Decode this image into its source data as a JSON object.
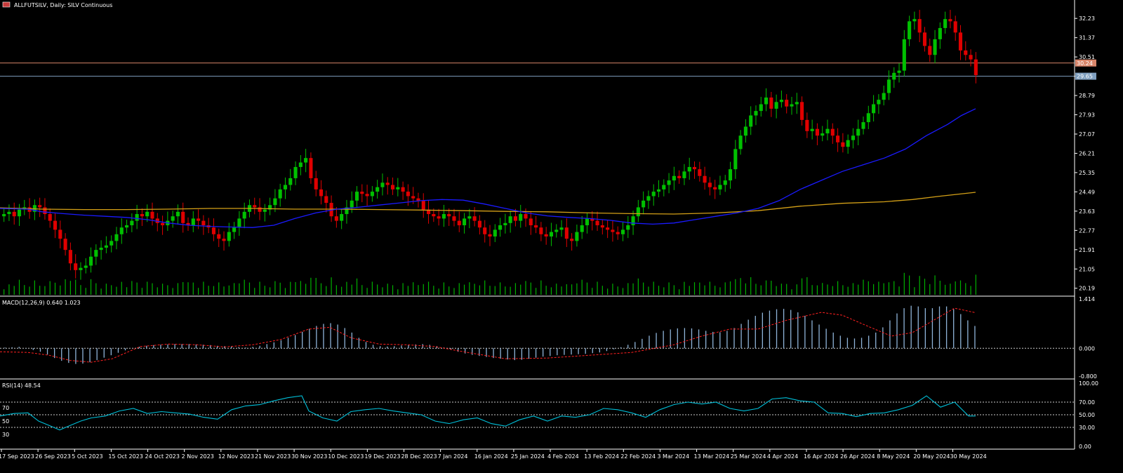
{
  "header": {
    "symbol_title": "ALLFUTSILV, Daily:  SILV Continuous",
    "flag_icon": "flag-icon"
  },
  "panels": {
    "macd_label": "MACD(12,26,9) 0.640 1.023",
    "rsi_label": "RSI(14) 48.54",
    "rsi_levels": [
      "70",
      "50",
      "30"
    ]
  },
  "colors": {
    "background": "#000000",
    "bull": "#00c000",
    "bear": "#e00000",
    "sma50": "#1a1aff",
    "sma200": "#d4a017",
    "volume": "#00b000",
    "macd_hist": "#8fb4d9",
    "macd_signal": "#ff2020",
    "rsi": "#00bfd8",
    "hline_upper": "#d9866b",
    "hline_lower": "#7f9fbf",
    "grid": "#888888"
  },
  "chart_data": [
    {
      "type": "candlestick",
      "title": "ALLFUTSILV, Daily:  SILV Continuous",
      "y_ticks": [
        "32.23",
        "31.37",
        "30.51",
        "29.65",
        "28.79",
        "27.93",
        "27.07",
        "26.21",
        "25.35",
        "24.49",
        "23.63",
        "22.77",
        "21.91",
        "21.05",
        "20.19"
      ],
      "ylim": [
        19.9,
        32.8
      ],
      "x_labels": [
        "17 Sep 2023",
        "26 Sep 2023",
        "5 Oct 2023",
        "15 Oct 2023",
        "24 Oct 2023",
        "2 Nov 2023",
        "12 Nov 2023",
        "21 Nov 2023",
        "30 Nov 2023",
        "10 Dec 2023",
        "19 Dec 2023",
        "28 Dec 2023",
        "7 Jan 2024",
        "16 Jan 2024",
        "25 Jan 2024",
        "4 Feb 2024",
        "13 Feb 2024",
        "22 Feb 2024",
        "3 Mar 2024",
        "13 Mar 2024",
        "25 Mar 2024",
        "4 Apr 2024",
        "16 Apr 2024",
        "26 Apr 2024",
        "8 May 2024",
        "20 May 2024",
        "30 May 2024"
      ],
      "horizontal_lines": [
        {
          "price_label": "30.24",
          "value": 30.24
        },
        {
          "price_label": "29.65",
          "value": 29.65
        }
      ],
      "close_series": [
        23.5,
        23.6,
        23.4,
        23.7,
        23.8,
        23.6,
        23.9,
        23.8,
        23.5,
        23.2,
        22.8,
        22.4,
        21.9,
        21.3,
        21.0,
        21.1,
        21.2,
        21.6,
        21.9,
        22.0,
        22.1,
        22.3,
        22.6,
        22.9,
        23.0,
        23.2,
        23.5,
        23.4,
        23.6,
        23.3,
        23.1,
        23.0,
        23.2,
        23.4,
        23.6,
        23.1,
        23.0,
        23.3,
        23.2,
        23.0,
        22.9,
        22.6,
        22.4,
        22.3,
        22.7,
        22.9,
        23.3,
        23.6,
        23.9,
        23.8,
        23.6,
        23.7,
        23.9,
        24.2,
        24.6,
        24.8,
        25.1,
        25.6,
        25.8,
        26.0,
        25.1,
        24.6,
        24.3,
        24.0,
        23.4,
        23.2,
        23.5,
        23.8,
        24.1,
        24.5,
        24.4,
        24.3,
        24.5,
        24.7,
        24.9,
        24.8,
        24.6,
        24.7,
        24.5,
        24.3,
        24.2,
        24.1,
        23.7,
        23.5,
        23.4,
        23.3,
        23.5,
        23.4,
        23.2,
        23.0,
        23.3,
        23.4,
        23.2,
        22.9,
        22.6,
        22.5,
        22.8,
        23.0,
        23.1,
        23.4,
        23.2,
        23.5,
        23.3,
        23.0,
        22.9,
        22.6,
        22.5,
        22.7,
        22.8,
        22.9,
        22.4,
        22.3,
        22.7,
        23.0,
        23.3,
        23.2,
        23.0,
        22.9,
        22.8,
        22.7,
        22.6,
        22.8,
        23.0,
        23.4,
        23.8,
        24.1,
        24.3,
        24.5,
        24.6,
        24.8,
        25.0,
        25.2,
        25.1,
        25.4,
        25.6,
        25.5,
        25.2,
        24.9,
        24.7,
        24.6,
        24.8,
        25.0,
        25.5,
        26.4,
        27.0,
        27.4,
        27.9,
        28.1,
        28.4,
        28.7,
        28.2,
        28.5,
        28.6,
        28.3,
        28.4,
        28.5,
        27.7,
        27.2,
        27.3,
        27.0,
        27.1,
        27.3,
        27.0,
        26.7,
        26.5,
        26.8,
        27.0,
        27.3,
        27.6,
        28.0,
        28.4,
        28.6,
        28.9,
        29.5,
        29.8,
        29.9,
        31.3,
        32.1,
        32.2,
        31.6,
        31.0,
        30.6,
        31.3,
        31.8,
        32.2,
        32.1,
        31.6,
        30.8,
        30.6,
        30.4,
        29.7
      ],
      "sma50_path": [
        [
          0,
          23.75
        ],
        [
          40,
          23.72
        ],
        [
          60,
          23.6
        ],
        [
          90,
          23.52
        ],
        [
          120,
          23.45
        ],
        [
          150,
          23.4
        ],
        [
          180,
          23.35
        ],
        [
          210,
          23.25
        ],
        [
          240,
          23.1
        ],
        [
          270,
          23.0
        ],
        [
          300,
          22.95
        ],
        [
          330,
          22.92
        ],
        [
          360,
          22.9
        ],
        [
          390,
          23.0
        ],
        [
          420,
          23.3
        ],
        [
          450,
          23.55
        ],
        [
          480,
          23.72
        ],
        [
          510,
          23.8
        ],
        [
          540,
          23.9
        ],
        [
          570,
          24.0
        ],
        [
          600,
          24.1
        ],
        [
          630,
          24.15
        ],
        [
          660,
          24.12
        ],
        [
          690,
          23.95
        ],
        [
          720,
          23.75
        ],
        [
          750,
          23.55
        ],
        [
          780,
          23.42
        ],
        [
          810,
          23.35
        ],
        [
          840,
          23.3
        ],
        [
          870,
          23.22
        ],
        [
          900,
          23.1
        ],
        [
          930,
          23.05
        ],
        [
          960,
          23.1
        ],
        [
          990,
          23.25
        ],
        [
          1020,
          23.4
        ],
        [
          1050,
          23.55
        ],
        [
          1080,
          23.75
        ],
        [
          1110,
          24.1
        ],
        [
          1140,
          24.6
        ],
        [
          1170,
          25.0
        ],
        [
          1200,
          25.4
        ],
        [
          1230,
          25.7
        ],
        [
          1260,
          26.0
        ],
        [
          1290,
          26.4
        ],
        [
          1320,
          27.0
        ],
        [
          1350,
          27.5
        ],
        [
          1370,
          27.9
        ],
        [
          1390,
          28.2
        ]
      ],
      "sma200_path": [
        [
          0,
          23.78
        ],
        [
          60,
          23.72
        ],
        [
          120,
          23.7
        ],
        [
          180,
          23.7
        ],
        [
          240,
          23.72
        ],
        [
          300,
          23.75
        ],
        [
          360,
          23.75
        ],
        [
          420,
          23.72
        ],
        [
          480,
          23.72
        ],
        [
          540,
          23.7
        ],
        [
          600,
          23.68
        ],
        [
          660,
          23.65
        ],
        [
          720,
          23.62
        ],
        [
          780,
          23.6
        ],
        [
          840,
          23.55
        ],
        [
          900,
          23.52
        ],
        [
          960,
          23.5
        ],
        [
          1020,
          23.55
        ],
        [
          1080,
          23.65
        ],
        [
          1140,
          23.85
        ],
        [
          1200,
          23.98
        ],
        [
          1260,
          24.05
        ],
        [
          1300,
          24.15
        ],
        [
          1340,
          24.3
        ],
        [
          1390,
          24.47
        ]
      ]
    },
    {
      "type": "bar",
      "title": "MACD(12,26,9) 0.640 1.023",
      "y_ticks": [
        "1.414",
        "0.000",
        "-0.800"
      ],
      "ylim": [
        -0.8,
        1.414
      ],
      "histogram_values": [
        0.02,
        0.03,
        0.04,
        -0.01,
        -0.05,
        -0.1,
        -0.18,
        -0.28,
        -0.36,
        -0.42,
        -0.45,
        -0.44,
        -0.4,
        -0.34,
        -0.27,
        -0.2,
        -0.13,
        -0.06,
        0.0,
        0.04,
        0.07,
        0.09,
        0.1,
        0.11,
        0.12,
        0.12,
        0.12,
        0.11,
        0.1,
        0.09,
        0.07,
        0.06,
        0.05,
        0.03,
        0.02,
        0.04,
        0.07,
        0.12,
        0.17,
        0.23,
        0.3,
        0.38,
        0.47,
        0.56,
        0.64,
        0.7,
        0.72,
        0.68,
        0.58,
        0.45,
        0.3,
        0.18,
        0.1,
        0.06,
        0.05,
        0.06,
        0.08,
        0.1,
        0.11,
        0.12,
        0.1,
        0.06,
        0.02,
        -0.04,
        -0.1,
        -0.15,
        -0.19,
        -0.22,
        -0.25,
        -0.28,
        -0.3,
        -0.32,
        -0.34,
        -0.33,
        -0.3,
        -0.27,
        -0.24,
        -0.22,
        -0.2,
        -0.19,
        -0.18,
        -0.17,
        -0.16,
        -0.14,
        -0.12,
        -0.08,
        -0.03,
        0.03,
        0.1,
        0.18,
        0.27,
        0.36,
        0.44,
        0.5,
        0.54,
        0.57,
        0.58,
        0.57,
        0.54,
        0.5,
        0.47,
        0.46,
        0.5,
        0.58,
        0.7,
        0.82,
        0.93,
        1.02,
        1.08,
        1.12,
        1.13,
        1.1,
        1.03,
        0.93,
        0.8,
        0.68,
        0.56,
        0.45,
        0.36,
        0.3,
        0.28,
        0.3,
        0.36,
        0.45,
        0.6,
        0.8,
        1.0,
        1.15,
        1.22,
        1.2,
        1.15,
        1.15,
        1.2,
        1.2,
        1.12,
        0.98,
        0.8,
        0.64
      ],
      "signal_path": [
        [
          0,
          -0.1
        ],
        [
          40,
          -0.12
        ],
        [
          70,
          -0.2
        ],
        [
          100,
          -0.35
        ],
        [
          130,
          -0.4
        ],
        [
          160,
          -0.3
        ],
        [
          200,
          0.05
        ],
        [
          240,
          0.12
        ],
        [
          280,
          0.1
        ],
        [
          320,
          0.04
        ],
        [
          360,
          0.1
        ],
        [
          400,
          0.25
        ],
        [
          440,
          0.55
        ],
        [
          470,
          0.6
        ],
        [
          500,
          0.3
        ],
        [
          540,
          0.12
        ],
        [
          580,
          0.1
        ],
        [
          620,
          0.05
        ],
        [
          660,
          -0.1
        ],
        [
          720,
          -0.3
        ],
        [
          780,
          -0.28
        ],
        [
          840,
          -0.2
        ],
        [
          900,
          -0.12
        ],
        [
          960,
          0.1
        ],
        [
          1000,
          0.35
        ],
        [
          1040,
          0.55
        ],
        [
          1080,
          0.55
        ],
        [
          1120,
          0.8
        ],
        [
          1170,
          1.03
        ],
        [
          1200,
          0.95
        ],
        [
          1240,
          0.6
        ],
        [
          1270,
          0.35
        ],
        [
          1300,
          0.45
        ],
        [
          1330,
          0.8
        ],
        [
          1360,
          1.15
        ],
        [
          1390,
          1.02
        ]
      ]
    },
    {
      "type": "line",
      "title": "RSI(14) 48.54",
      "y_ticks": [
        "100.00",
        "70.00",
        "50.00",
        "30.00",
        "0.00"
      ],
      "ylim": [
        0,
        100
      ],
      "levels": [
        70,
        50,
        30
      ],
      "rsi_path": [
        [
          0,
          48
        ],
        [
          20,
          52
        ],
        [
          40,
          53
        ],
        [
          55,
          40
        ],
        [
          70,
          33
        ],
        [
          85,
          26
        ],
        [
          100,
          33
        ],
        [
          115,
          40
        ],
        [
          130,
          45
        ],
        [
          150,
          48
        ],
        [
          170,
          56
        ],
        [
          190,
          60
        ],
        [
          210,
          52
        ],
        [
          230,
          55
        ],
        [
          250,
          53
        ],
        [
          270,
          51
        ],
        [
          290,
          46
        ],
        [
          310,
          43
        ],
        [
          330,
          58
        ],
        [
          350,
          64
        ],
        [
          370,
          66
        ],
        [
          390,
          72
        ],
        [
          410,
          77
        ],
        [
          430,
          80
        ],
        [
          440,
          56
        ],
        [
          460,
          45
        ],
        [
          480,
          40
        ],
        [
          500,
          55
        ],
        [
          520,
          58
        ],
        [
          540,
          60
        ],
        [
          560,
          56
        ],
        [
          580,
          53
        ],
        [
          600,
          50
        ],
        [
          620,
          40
        ],
        [
          640,
          36
        ],
        [
          660,
          42
        ],
        [
          680,
          45
        ],
        [
          700,
          36
        ],
        [
          720,
          32
        ],
        [
          740,
          42
        ],
        [
          760,
          48
        ],
        [
          780,
          40
        ],
        [
          800,
          48
        ],
        [
          820,
          46
        ],
        [
          840,
          50
        ],
        [
          860,
          60
        ],
        [
          880,
          58
        ],
        [
          900,
          53
        ],
        [
          920,
          46
        ],
        [
          940,
          58
        ],
        [
          960,
          66
        ],
        [
          980,
          70
        ],
        [
          1000,
          67
        ],
        [
          1020,
          70
        ],
        [
          1040,
          60
        ],
        [
          1060,
          56
        ],
        [
          1080,
          60
        ],
        [
          1100,
          75
        ],
        [
          1120,
          77
        ],
        [
          1140,
          72
        ],
        [
          1160,
          70
        ],
        [
          1180,
          53
        ],
        [
          1200,
          52
        ],
        [
          1220,
          47
        ],
        [
          1240,
          52
        ],
        [
          1260,
          53
        ],
        [
          1280,
          58
        ],
        [
          1300,
          65
        ],
        [
          1320,
          80
        ],
        [
          1340,
          62
        ],
        [
          1360,
          70
        ],
        [
          1380,
          48
        ],
        [
          1390,
          48
        ]
      ]
    }
  ]
}
